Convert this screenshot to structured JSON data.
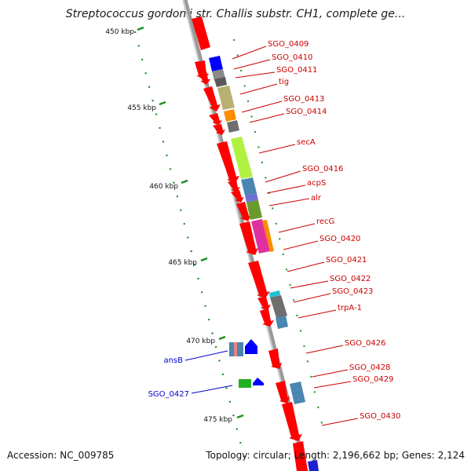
{
  "title": "Streptococcus gordonii str. Challis substr. CH1, complete ge...",
  "footer": {
    "accession": "Accession: NC_009785",
    "stats": "Topology: circular; Length: 2,196,662 bp; Genes: 2,124"
  },
  "colors": {
    "backbone": "#8a8a8a",
    "ruler": "#1e8c1e",
    "forward_label": "#cc0000",
    "reverse_label": "#0000cc",
    "gene_red": "#ff0000"
  },
  "ruler": [
    {
      "label": "450 kbp"
    },
    {
      "label": "455 kbp"
    },
    {
      "label": "460 kbp"
    },
    {
      "label": "465 kbp"
    },
    {
      "label": "470 kbp"
    },
    {
      "label": "475 kbp"
    }
  ],
  "forward_genes": [
    {
      "label": "SGO_0409",
      "color": "#0000ff"
    },
    {
      "label": "SGO_0410",
      "color": "#6e6e6e"
    },
    {
      "label": "SGO_0411",
      "color": "#6e6e6e"
    },
    {
      "label": "tig",
      "color": "#b8b072"
    },
    {
      "label": "SGO_0413",
      "color": "#ff8c00"
    },
    {
      "label": "SGO_0414",
      "color": "#6e6e6e"
    },
    {
      "label": "secA",
      "color": "#b0f040"
    },
    {
      "label": "SGO_0416",
      "color": "#4a86b0"
    },
    {
      "label": "acpS",
      "color": "#7070d0"
    },
    {
      "label": "alr",
      "color": "#6a9a2a"
    },
    {
      "label": "recG",
      "color": "#e030a0"
    },
    {
      "label": "SGO_0420",
      "color": "#ff8c00"
    },
    {
      "label": "SGO_0421",
      "color": "#ff0000"
    },
    {
      "label": "SGO_0422",
      "color": "#ff0000"
    },
    {
      "label": "SGO_0423",
      "color": "#20c0d0"
    },
    {
      "label": "trpA-1",
      "color": "#6e6e6e"
    },
    {
      "label": "SGO_0426",
      "color": "#ff0000"
    },
    {
      "label": "SGO_0428",
      "color": "#4a86b0"
    },
    {
      "label": "SGO_0429",
      "color": "#4a86b0"
    },
    {
      "label": "SGO_0430",
      "color": "#ff0000"
    }
  ],
  "reverse_genes": [
    {
      "label": "ansB",
      "color": "#4a86b0"
    },
    {
      "label": "SGO_0427",
      "color": "#20b020"
    }
  ]
}
